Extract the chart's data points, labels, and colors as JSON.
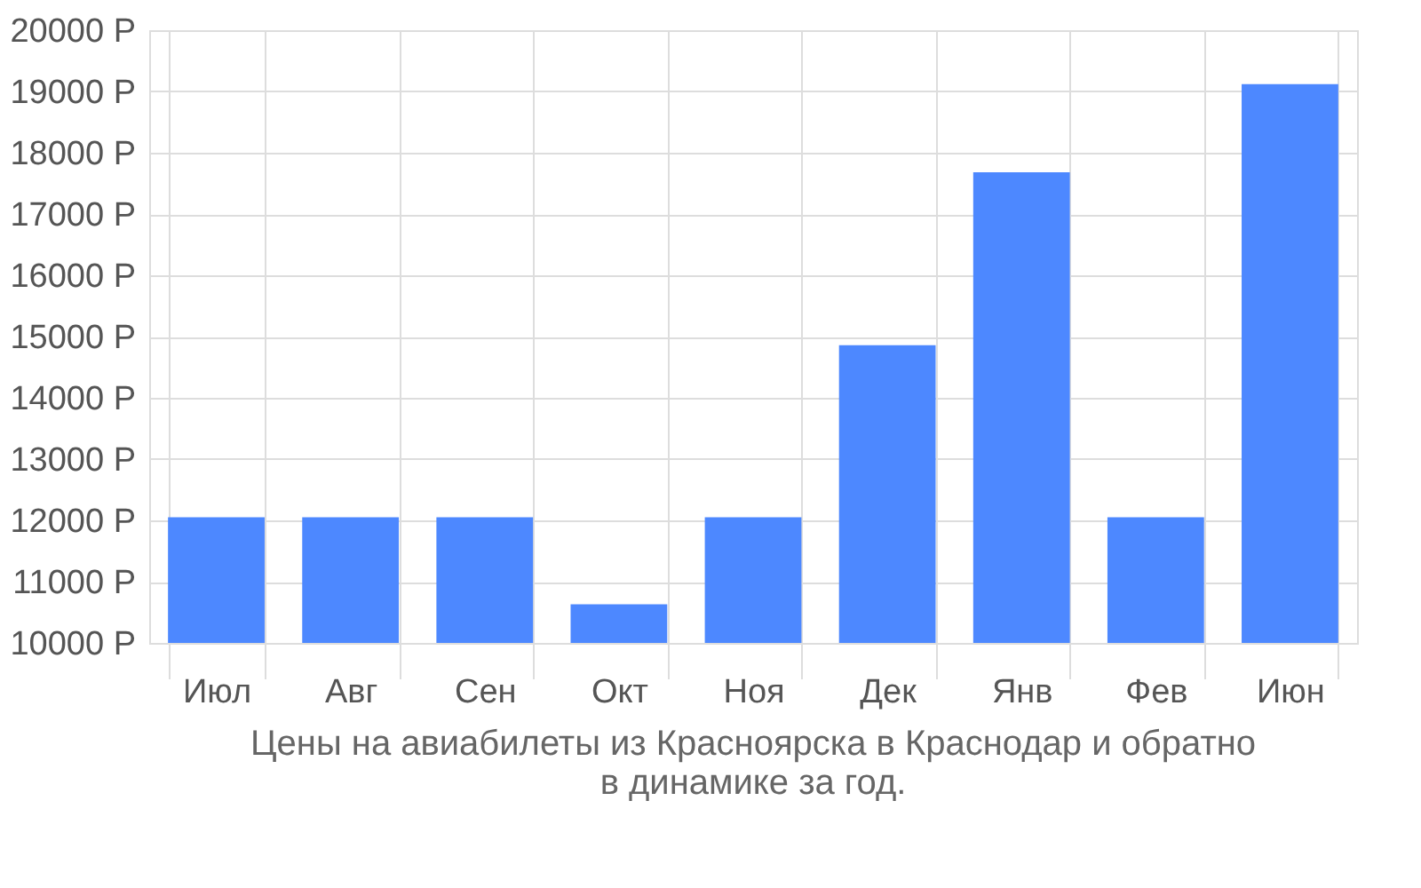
{
  "chart_data": {
    "type": "bar",
    "categories": [
      "Июл",
      "Авг",
      "Сен",
      "Окт",
      "Ноя",
      "Дек",
      "Янв",
      "Фев",
      "Июн"
    ],
    "values": [
      12050,
      12050,
      12050,
      10630,
      12050,
      14860,
      17680,
      12050,
      19120
    ],
    "color": "#4d88ff",
    "ylim": [
      10000,
      20000
    ],
    "yticks": [
      {
        "value": 10000,
        "label": "10000 Р"
      },
      {
        "value": 11000,
        "label": "11000 Р"
      },
      {
        "value": 12000,
        "label": "12000 Р"
      },
      {
        "value": 13000,
        "label": "13000 Р"
      },
      {
        "value": 14000,
        "label": "14000 Р"
      },
      {
        "value": 15000,
        "label": "15000 Р"
      },
      {
        "value": 16000,
        "label": "16000 Р"
      },
      {
        "value": 17000,
        "label": "17000 Р"
      },
      {
        "value": 18000,
        "label": "18000 Р"
      },
      {
        "value": 19000,
        "label": "19000 Р"
      },
      {
        "value": 20000,
        "label": "20000 Р"
      }
    ],
    "grid": true,
    "annotations": [
      "Цены на авиабилеты из Красноярска в Краснодар и обратно",
      "в динамике за год."
    ]
  }
}
